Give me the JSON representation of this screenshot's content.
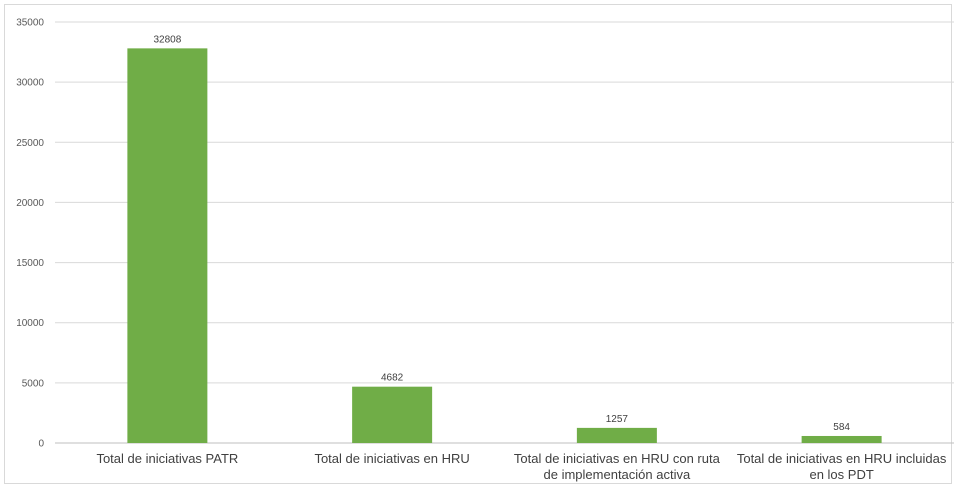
{
  "chart_data": {
    "type": "bar",
    "title": "",
    "xlabel": "",
    "ylabel": "",
    "categories": [
      "Total de iniciativas PATR",
      "Total de iniciativas en HRU",
      "Total de iniciativas en HRU con ruta de implementación activa",
      "Total de iniciativas en HRU incluidas en los PDT"
    ],
    "category_lines": [
      [
        "Total de iniciativas PATR"
      ],
      [
        "Total de iniciativas en HRU"
      ],
      [
        "Total de iniciativas en HRU con ruta",
        "de implementación activa"
      ],
      [
        "Total de iniciativas en HRU incluidas",
        "en los PDT"
      ]
    ],
    "values": [
      32808,
      4682,
      1257,
      584
    ],
    "data_labels": [
      "32808",
      "4682",
      "1257",
      "584"
    ],
    "ylim": [
      0,
      35000
    ],
    "yticks": [
      "0",
      "5000",
      "10000",
      "15000",
      "20000",
      "25000",
      "30000",
      "35000"
    ],
    "grid": true,
    "legend": "none",
    "bar_color": "#70ad47",
    "grid_color": "#d9d9d9",
    "axis_color": "#bfbfbf"
  }
}
